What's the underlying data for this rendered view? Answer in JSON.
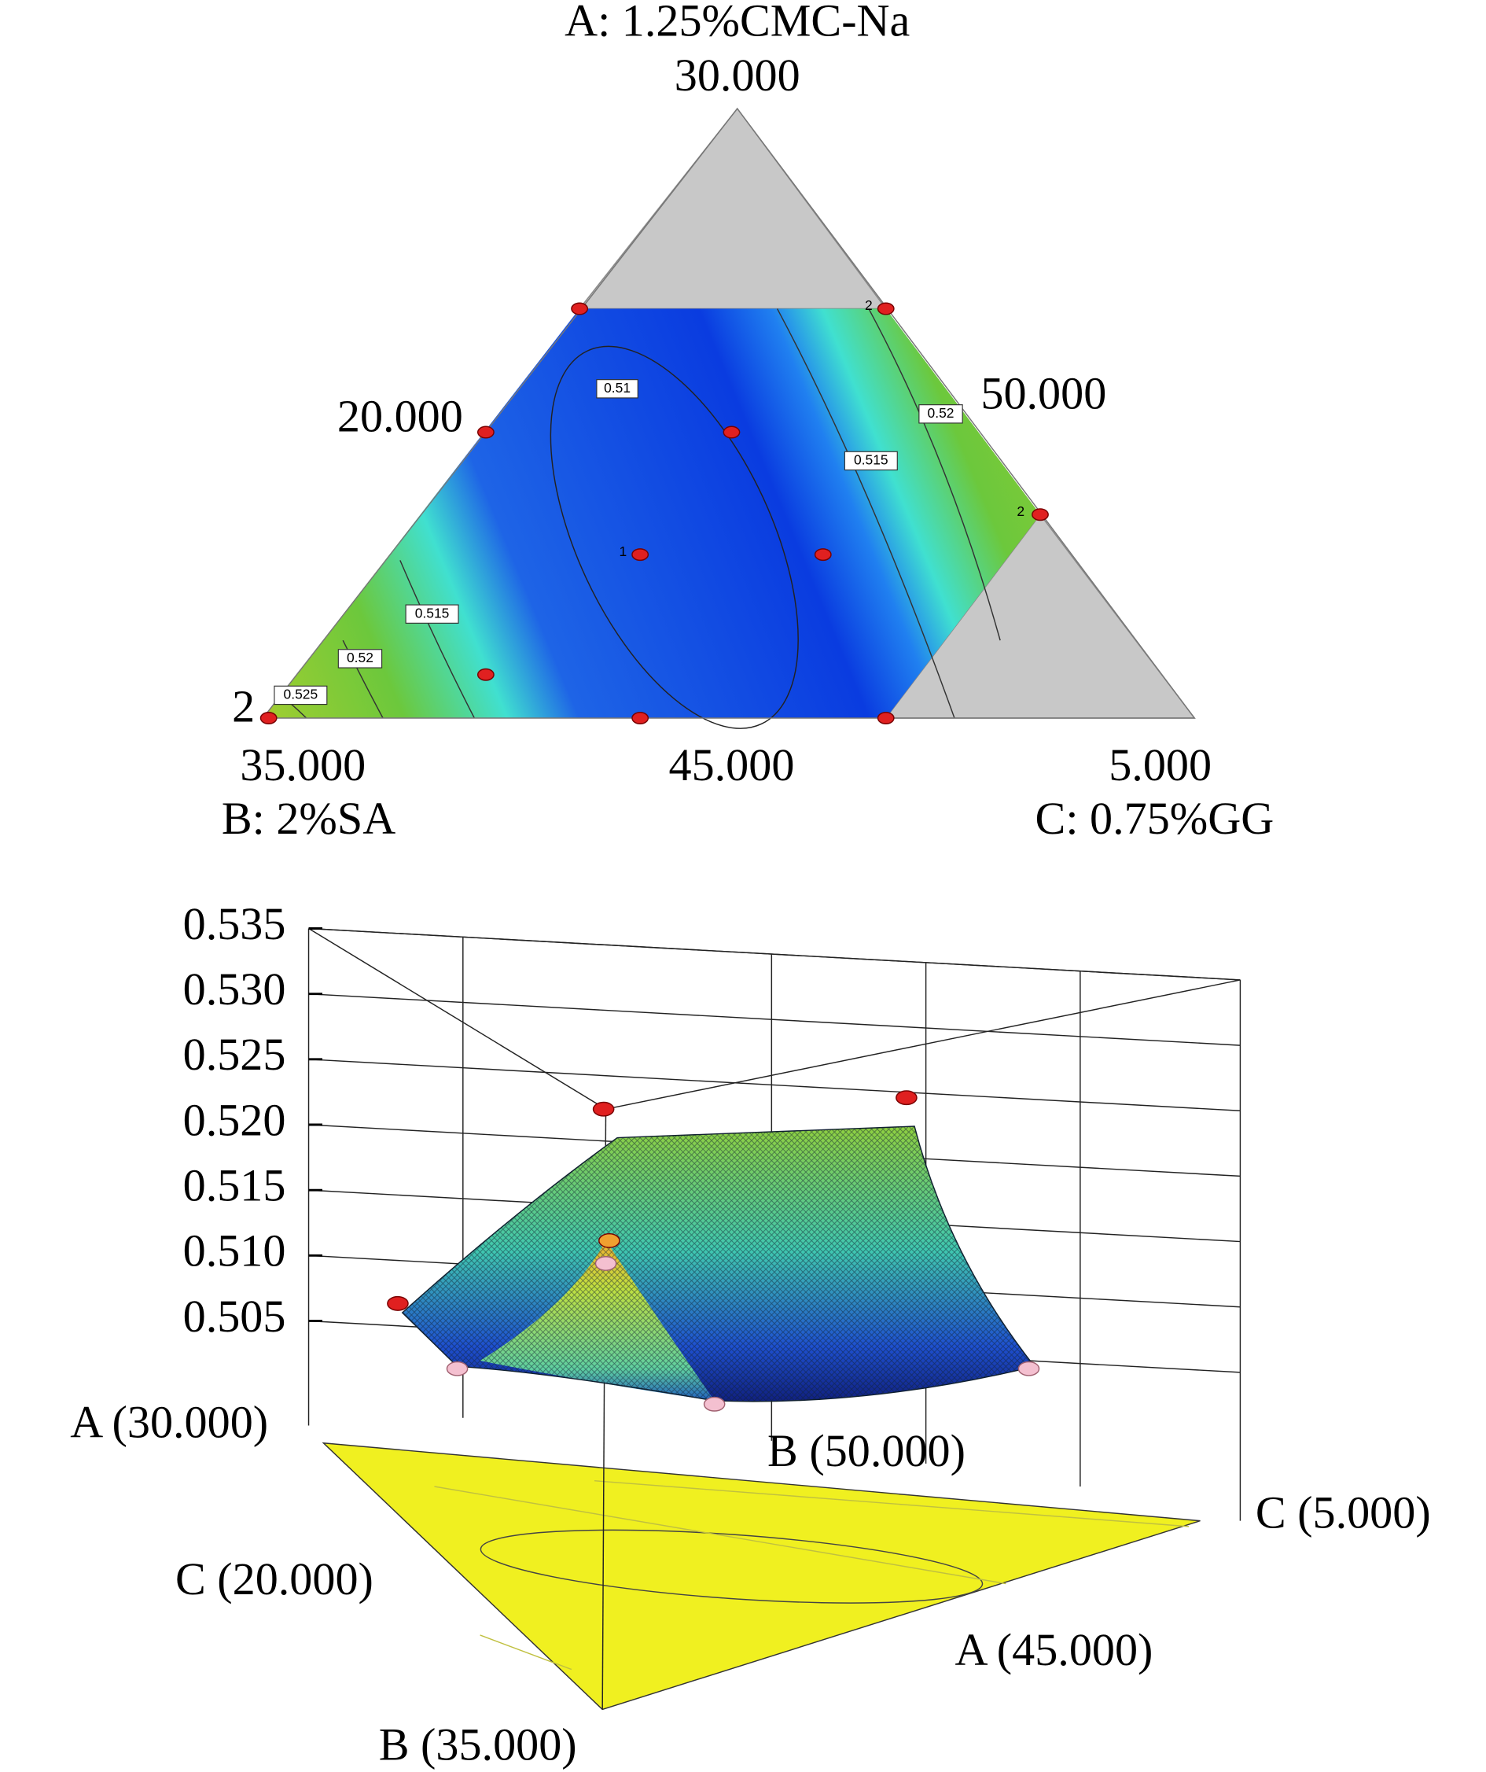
{
  "chart_data": [
    {
      "type": "ternary",
      "vertices": [
        {
          "component": "A: 1.25%CMC-Na",
          "label": "30.000"
        },
        {
          "component": "B: 2%SA",
          "label": "35.000"
        },
        {
          "component": "C: 0.75%GG",
          "label": "5.000"
        }
      ],
      "edge_labels": [
        "20.000",
        "50.000",
        "45.000"
      ],
      "contour_labels": [
        0.51,
        0.515,
        0.52,
        0.515,
        0.52,
        0.525
      ],
      "replicate_labels": [
        2,
        2,
        1,
        2
      ]
    },
    {
      "type": "surface",
      "zlim": [
        0.497,
        0.535
      ],
      "zticks": [
        0.535,
        {
          "value": 0.53,
          "label": "0.530"
        },
        0.525,
        {
          "value": 0.52,
          "label": "0.520"
        },
        0.515,
        {
          "value": 0.51,
          "label": "0.510"
        },
        0.505
      ],
      "axis_labels": [
        "A (30.000)",
        "B (50.000)",
        "C (5.000)",
        "C (20.000)",
        "A (45.000)",
        "B (35.000)"
      ]
    }
  ]
}
